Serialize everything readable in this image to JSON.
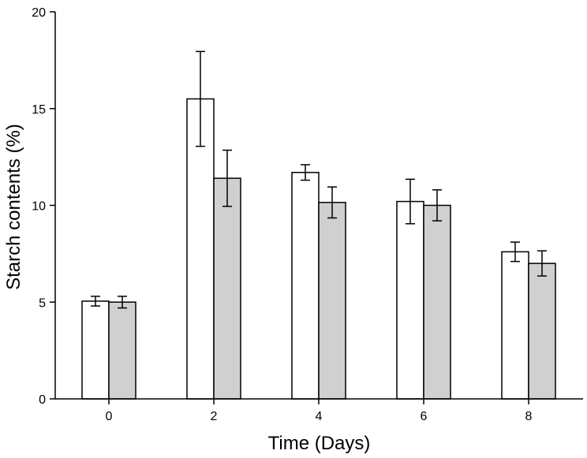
{
  "chart_data": {
    "type": "bar",
    "xlabel": "Time (Days)",
    "ylabel": "Starch contents (%)",
    "categories": [
      "0",
      "2",
      "4",
      "6",
      "8"
    ],
    "ylim": [
      0,
      20
    ],
    "yticks": [
      0,
      5,
      10,
      15,
      20
    ],
    "grid": false,
    "legend": "none",
    "series": [
      {
        "color": "#ffffff",
        "values": [
          5.05,
          15.5,
          11.7,
          10.2,
          7.6
        ],
        "errors": [
          0.25,
          2.45,
          0.4,
          1.15,
          0.5
        ]
      },
      {
        "color": "#d0d0d0",
        "values": [
          5.0,
          11.4,
          10.15,
          10.0,
          7.0
        ],
        "errors": [
          0.3,
          1.45,
          0.8,
          0.8,
          0.65
        ]
      }
    ]
  }
}
